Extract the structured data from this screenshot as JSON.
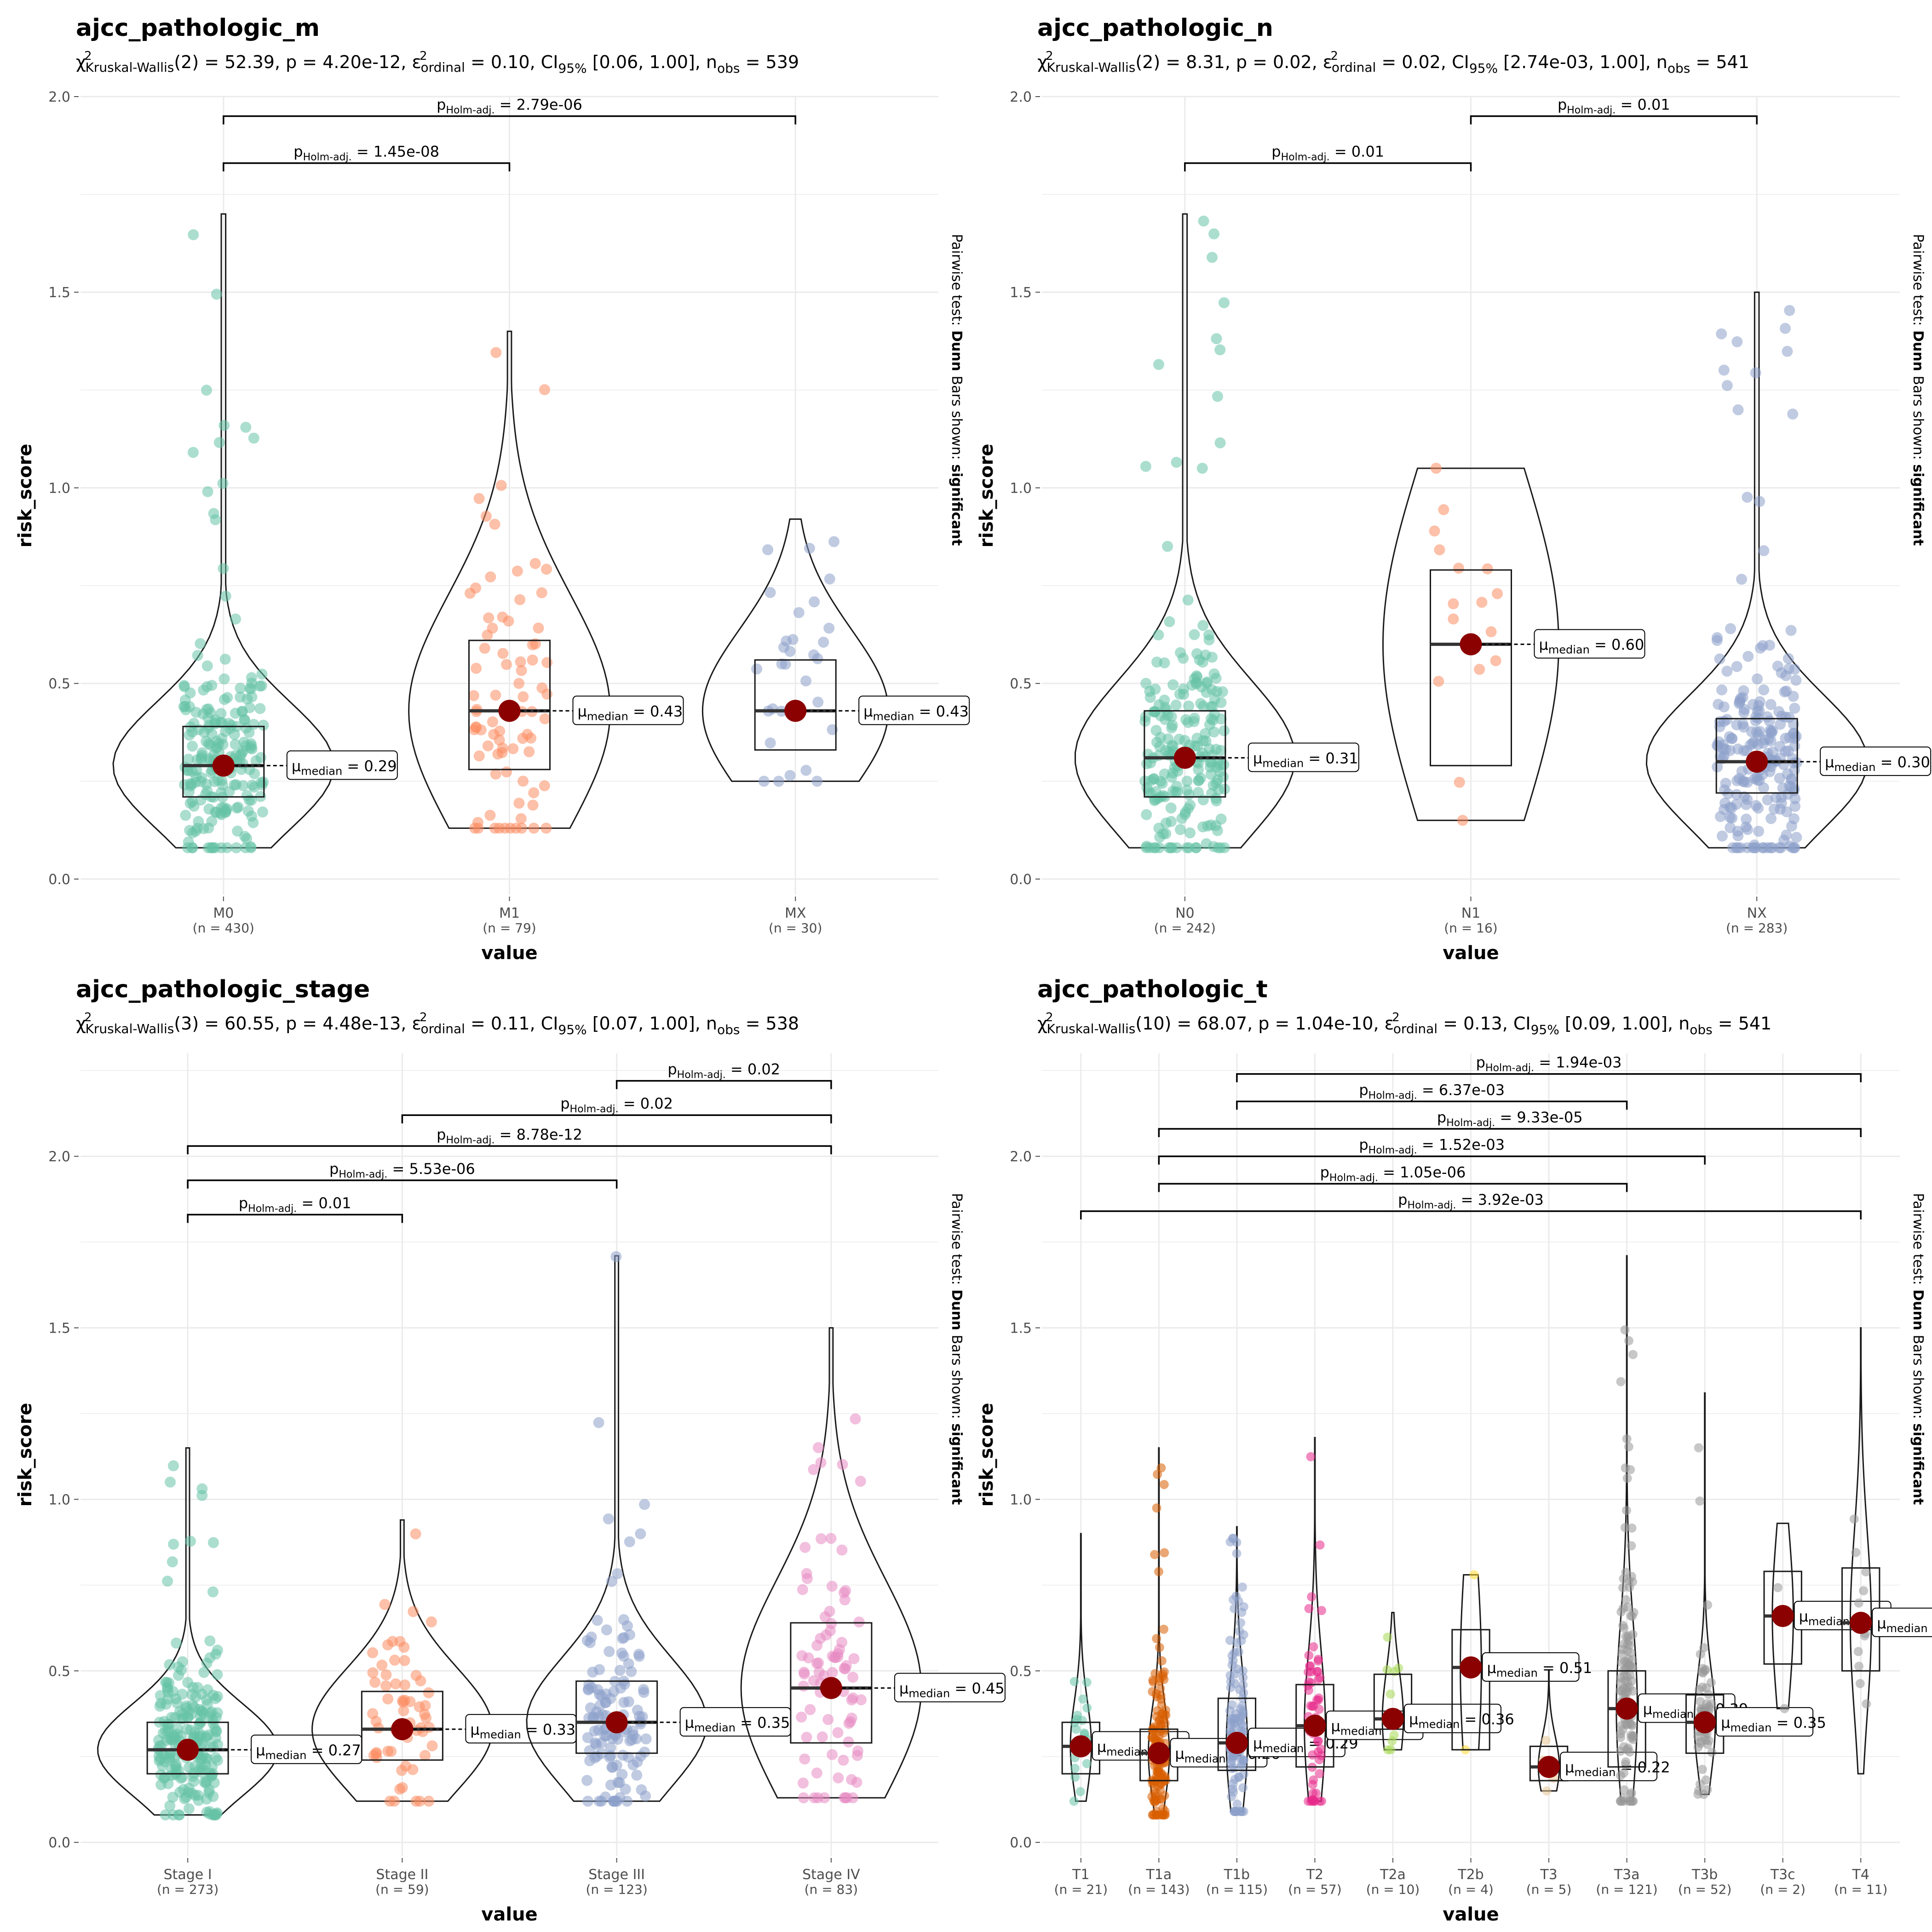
{
  "chart_data": [
    {
      "type": "violin-box-scatter",
      "title": "ajcc_pathologic_m",
      "subtitle": {
        "stat": "Kruskal-Wallis",
        "df": "2",
        "value": "52.39",
        "p": "4.20e-12",
        "effect": "0.10",
        "ci": "[0.06, 1.00]",
        "nobs": "539"
      },
      "xlabel": "value",
      "ylabel": "risk_score",
      "side_label": {
        "pre": "Pairwise test: ",
        "b1": "Dunn",
        "mid": " Bars shown: ",
        "b2": "significant"
      },
      "ylim": [
        0,
        2.0
      ],
      "yticks": [
        0,
        0.5,
        1.0,
        1.5,
        2.0
      ],
      "grid": true,
      "colors": {
        "M0": "#66c2a5",
        "M1": "#fc8d62",
        "MX": "#8da0cb"
      },
      "categories": [
        "M0",
        "M1",
        "MX"
      ],
      "n": [
        430,
        79,
        30
      ],
      "medians": [
        0.29,
        0.43,
        0.43
      ],
      "median_labels": [
        "0.29",
        "0.43",
        "0.43"
      ],
      "box": [
        [
          0.21,
          0.39
        ],
        [
          0.28,
          0.61
        ],
        [
          0.33,
          0.56
        ]
      ],
      "range": [
        [
          0.08,
          1.7
        ],
        [
          0.13,
          1.4
        ],
        [
          0.25,
          0.92
        ]
      ],
      "comparisons": [
        {
          "from": "M0",
          "to": "M1",
          "p": "1.45e-08",
          "y": 1.83
        },
        {
          "from": "M0",
          "to": "MX",
          "p": "2.79e-06",
          "y": 1.95
        }
      ]
    },
    {
      "type": "violin-box-scatter",
      "title": "ajcc_pathologic_n",
      "subtitle": {
        "stat": "Kruskal-Wallis",
        "df": "2",
        "value": "8.31",
        "p": "0.02",
        "effect": "0.02",
        "ci": "[2.74e-03, 1.00]",
        "nobs": "541"
      },
      "xlabel": "value",
      "ylabel": "risk_score",
      "side_label": {
        "pre": "Pairwise test: ",
        "b1": "Dunn",
        "mid": " Bars shown: ",
        "b2": "significant"
      },
      "ylim": [
        0,
        2.0
      ],
      "yticks": [
        0,
        0.5,
        1.0,
        1.5,
        2.0
      ],
      "grid": true,
      "colors": {
        "N0": "#66c2a5",
        "N1": "#fc8d62",
        "NX": "#8da0cb"
      },
      "categories": [
        "N0",
        "N1",
        "NX"
      ],
      "n": [
        242,
        16,
        283
      ],
      "medians": [
        0.31,
        0.6,
        0.3
      ],
      "median_labels": [
        "0.31",
        "0.60",
        "0.30"
      ],
      "box": [
        [
          0.21,
          0.43
        ],
        [
          0.29,
          0.79
        ],
        [
          0.22,
          0.41
        ]
      ],
      "range": [
        [
          0.08,
          1.7
        ],
        [
          0.15,
          1.05
        ],
        [
          0.08,
          1.5
        ]
      ],
      "comparisons": [
        {
          "from": "N0",
          "to": "N1",
          "p": "0.01",
          "y": 1.83
        },
        {
          "from": "N1",
          "to": "NX",
          "p": "0.01",
          "y": 1.95
        }
      ]
    },
    {
      "type": "violin-box-scatter",
      "title": "ajcc_pathologic_stage",
      "subtitle": {
        "stat": "Kruskal-Wallis",
        "df": "3",
        "value": "60.55",
        "p": "4.48e-13",
        "effect": "0.11",
        "ci": "[0.07, 1.00]",
        "nobs": "538"
      },
      "xlabel": "value",
      "ylabel": "risk_score",
      "side_label": {
        "pre": "Pairwise test: ",
        "b1": "Dunn",
        "mid": " Bars shown: ",
        "b2": "significant"
      },
      "ylim": [
        0,
        2.0
      ],
      "yticks": [
        0,
        0.5,
        1.0,
        1.5,
        2.0
      ],
      "grid": true,
      "colors": {
        "Stage I": "#66c2a5",
        "Stage II": "#fc8d62",
        "Stage III": "#8da0cb",
        "Stage IV": "#e78ac3"
      },
      "categories": [
        "Stage I",
        "Stage II",
        "Stage III",
        "Stage IV"
      ],
      "n": [
        273,
        59,
        123,
        83
      ],
      "medians": [
        0.27,
        0.33,
        0.35,
        0.45
      ],
      "median_labels": [
        "0.27",
        "0.33",
        "0.35",
        "0.45"
      ],
      "box": [
        [
          0.2,
          0.35
        ],
        [
          0.24,
          0.44
        ],
        [
          0.26,
          0.47
        ],
        [
          0.29,
          0.64
        ]
      ],
      "range": [
        [
          0.08,
          1.15
        ],
        [
          0.12,
          0.94
        ],
        [
          0.12,
          1.71
        ],
        [
          0.13,
          1.5
        ]
      ],
      "comparisons": [
        {
          "from": "Stage I",
          "to": "Stage II",
          "p": "0.01",
          "y": 1.83
        },
        {
          "from": "Stage I",
          "to": "Stage III",
          "p": "5.53e-06",
          "y": 1.93
        },
        {
          "from": "Stage I",
          "to": "Stage IV",
          "p": "8.78e-12",
          "y": 2.03
        },
        {
          "from": "Stage II",
          "to": "Stage IV",
          "p": "0.02",
          "y": 2.12
        },
        {
          "from": "Stage III",
          "to": "Stage IV",
          "p": "0.02",
          "y": 2.22
        }
      ]
    },
    {
      "type": "violin-box-scatter",
      "title": "ajcc_pathologic_t",
      "subtitle": {
        "stat": "Kruskal-Wallis",
        "df": "10",
        "value": "68.07",
        "p": "1.04e-10",
        "effect": "0.13",
        "ci": "[0.09, 1.00]",
        "nobs": "541"
      },
      "xlabel": "value",
      "ylabel": "risk_score",
      "side_label": {
        "pre": "Pairwise test: ",
        "b1": "Dunn",
        "mid": " Bars shown: ",
        "b2": "significant"
      },
      "ylim": [
        0,
        2.0
      ],
      "yticks": [
        0,
        0.5,
        1.0,
        1.5,
        2.0
      ],
      "grid": true,
      "colors": {
        "T1": "#66c2a5",
        "T1a": "#d95f02",
        "T1b": "#8da0cb",
        "T2": "#e7298a",
        "T2a": "#a6d854",
        "T2b": "#ffd92f",
        "T3": "#e5c494",
        "T3a": "#999999",
        "T3b": "#999999",
        "T3c": "#999999",
        "T4": "#999999"
      },
      "categories": [
        "T1",
        "T1a",
        "T1b",
        "T2",
        "T2a",
        "T2b",
        "T3",
        "T3a",
        "T3b",
        "T3c",
        "T4"
      ],
      "n": [
        21,
        143,
        115,
        57,
        10,
        4,
        5,
        121,
        52,
        2,
        11
      ],
      "medians": [
        0.28,
        0.26,
        0.29,
        0.34,
        0.36,
        0.51,
        0.22,
        0.39,
        0.35,
        0.66,
        0.64
      ],
      "median_labels": [
        "0.28",
        "0.26",
        "0.29",
        "0.34",
        "0.36",
        "0.51",
        "0.22",
        "0.39",
        "0.35",
        "0.66",
        "0.64"
      ],
      "box": [
        [
          0.2,
          0.35
        ],
        [
          0.18,
          0.33
        ],
        [
          0.21,
          0.42
        ],
        [
          0.22,
          0.46
        ],
        [
          0.33,
          0.49
        ],
        [
          0.27,
          0.62
        ],
        [
          0.18,
          0.28
        ],
        [
          0.22,
          0.5
        ],
        [
          0.26,
          0.43
        ],
        [
          0.52,
          0.79
        ],
        [
          0.5,
          0.8
        ]
      ],
      "range": [
        [
          0.12,
          0.9
        ],
        [
          0.08,
          1.15
        ],
        [
          0.09,
          0.92
        ],
        [
          0.12,
          1.18
        ],
        [
          0.27,
          0.67
        ],
        [
          0.27,
          0.78
        ],
        [
          0.15,
          0.5
        ],
        [
          0.12,
          1.71
        ],
        [
          0.14,
          1.31
        ],
        [
          0.39,
          0.93
        ],
        [
          0.2,
          1.5
        ]
      ],
      "comparisons": [
        {
          "from": "T1",
          "to": "T4",
          "p": "3.92e-03",
          "y": 1.84
        },
        {
          "from": "T1a",
          "to": "T3a",
          "p": "1.05e-06",
          "y": 1.92
        },
        {
          "from": "T1a",
          "to": "T3b",
          "p": "1.52e-03",
          "y": 2.0
        },
        {
          "from": "T1a",
          "to": "T4",
          "p": "9.33e-05",
          "y": 2.08
        },
        {
          "from": "T1b",
          "to": "T3a",
          "p": "6.37e-03",
          "y": 2.16
        },
        {
          "from": "T1b",
          "to": "T4",
          "p": "1.94e-03",
          "y": 2.24
        }
      ]
    }
  ]
}
